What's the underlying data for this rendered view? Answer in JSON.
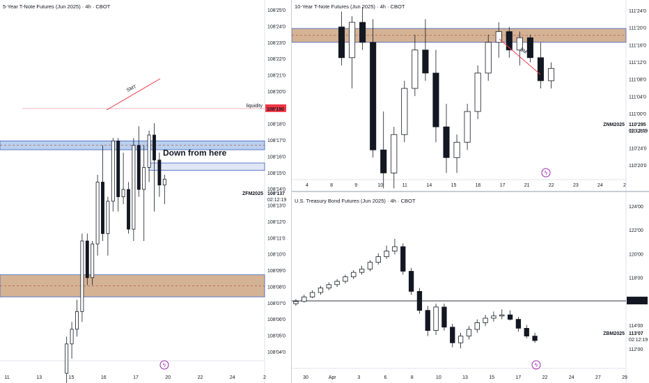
{
  "chart_data": [
    {
      "type": "candlestick",
      "title": "5-Year T-Note Futures (Jun 2025) · 4h · CBOT",
      "symbol": "ZFM2025",
      "last_price": "108'137",
      "countdown": "02:12:19",
      "liquidity_label": "liquidity",
      "liquidity_price": "108'190",
      "annotation": "Down from here",
      "smt_label": "SMT",
      "y_ticks": [
        "108'25'0",
        "108'24'0",
        "108'23'0",
        "108'22'0",
        "108'21'0",
        "108'20'0",
        "108'19'0",
        "108'18'0",
        "108'17'0",
        "108'16'0",
        "108'15'0",
        "108'14'0",
        "108'13'0",
        "108'12'0",
        "108'11'0",
        "108'10'0",
        "108'09'0",
        "108'08'0",
        "108'07'0",
        "108'06'0",
        "108'05'0",
        "108'04'0"
      ],
      "x_ticks": [
        "11",
        "13",
        "15",
        "16",
        "17",
        "20",
        "22",
        "24",
        "2"
      ],
      "ylim": [
        108.02,
        108.26
      ],
      "candles": [
        [
          108.01,
          108.035,
          107.99,
          108.03
        ],
        [
          108.03,
          108.045,
          108.02,
          108.04
        ],
        [
          108.04,
          108.06,
          108.035,
          108.052
        ],
        [
          108.052,
          108.105,
          108.045,
          108.1
        ],
        [
          108.1,
          108.105,
          108.07,
          108.075
        ],
        [
          108.075,
          108.1,
          108.07,
          108.098
        ],
        [
          108.098,
          108.145,
          108.09,
          108.14
        ],
        [
          108.14,
          108.165,
          108.1,
          108.105
        ],
        [
          108.105,
          108.13,
          108.09,
          108.127
        ],
        [
          108.127,
          108.17,
          108.12,
          108.168
        ],
        [
          108.168,
          108.17,
          108.12,
          108.13
        ],
        [
          108.13,
          108.16,
          108.125,
          108.135
        ],
        [
          108.135,
          108.14,
          108.105,
          108.108
        ],
        [
          108.108,
          108.17,
          108.1,
          108.165
        ],
        [
          108.165,
          108.178,
          108.13,
          108.135
        ],
        [
          108.135,
          108.165,
          108.1,
          108.15
        ],
        [
          108.15,
          108.175,
          108.14,
          108.172
        ],
        [
          108.172,
          108.18,
          108.12,
          108.155
        ],
        [
          108.155,
          108.16,
          108.13,
          108.138
        ],
        [
          108.138,
          108.145,
          108.125,
          108.142
        ]
      ],
      "zones": [
        {
          "name": "upper-zone",
          "from": 108.162,
          "to": 108.168,
          "color": "#a8c4e8"
        },
        {
          "name": "lower-zone",
          "from": 108.062,
          "to": 108.077,
          "color": "#c9a07a"
        }
      ],
      "annotation_zone": {
        "from": 108.148,
        "to": 108.153
      }
    },
    {
      "type": "candlestick",
      "title": "10-Year T-Note Futures (Jun 2025) · 4h · CBOT",
      "symbol": "ZNM2025",
      "last_price": "110'295",
      "countdown": "02:12:19",
      "smt_label": "SMT",
      "y_ticks": [
        "111'24'0",
        "111'20'0",
        "111'16'0",
        "111'12'0",
        "111'08'0",
        "111'04'0",
        "111'00'0",
        "110'28'0",
        "110'24'0",
        "110'20'0"
      ],
      "x_ticks": [
        "4",
        "8",
        "9",
        "10",
        "11",
        "14",
        "15",
        "16",
        "17",
        "21",
        "22",
        "23",
        "24",
        "2"
      ],
      "ylim": [
        110.17,
        111.28
      ],
      "candles": [
        [
          111.15,
          111.25,
          110.9,
          110.95
        ],
        [
          110.95,
          111.22,
          110.75,
          111.18
        ],
        [
          111.18,
          111.28,
          111.0,
          111.05
        ],
        [
          111.05,
          111.2,
          110.3,
          110.35
        ],
        [
          110.35,
          110.6,
          110.1,
          110.2
        ],
        [
          110.2,
          110.5,
          110.1,
          110.45
        ],
        [
          110.45,
          110.8,
          110.4,
          110.75
        ],
        [
          110.75,
          111.1,
          110.7,
          111.0
        ],
        [
          111.0,
          111.2,
          110.8,
          110.85
        ],
        [
          110.85,
          111.0,
          110.4,
          110.5
        ],
        [
          110.5,
          110.65,
          110.2,
          110.3
        ],
        [
          110.3,
          110.45,
          110.2,
          110.4
        ],
        [
          110.4,
          110.65,
          110.35,
          110.6
        ],
        [
          110.6,
          110.9,
          110.55,
          110.85
        ],
        [
          110.85,
          111.1,
          110.8,
          111.05
        ],
        [
          111.05,
          111.18,
          110.95,
          111.12
        ],
        [
          111.12,
          111.15,
          110.95,
          111.0
        ],
        [
          111.0,
          111.12,
          110.9,
          111.08
        ],
        [
          111.08,
          111.1,
          110.92,
          110.95
        ],
        [
          110.95,
          111.05,
          110.75,
          110.8
        ],
        [
          110.8,
          110.92,
          110.75,
          110.88
        ]
      ],
      "zones": [
        {
          "name": "zone",
          "from": 111.05,
          "to": 111.14,
          "color": "#c9a07a"
        }
      ]
    },
    {
      "type": "candlestick",
      "title": "U.S. Treasury Bond Futures (Jun 2025) · 4h · CBOT",
      "symbol": "ZBM2025",
      "last_price": "113'07",
      "countdown": "02:12:19",
      "level_price": "116'21",
      "y_ticks": [
        "124'00",
        "122'00",
        "120'00",
        "118'00",
        "116'00",
        "114'00",
        "112'00"
      ],
      "x_ticks": [
        "30",
        "Apr",
        "3",
        "6",
        "8",
        "10",
        "13",
        "15",
        "17",
        "22",
        "24",
        "27",
        "29"
      ],
      "ylim": [
        110.8,
        125.0
      ],
      "candles": [
        [
          116.4,
          116.8,
          116.2,
          116.6
        ],
        [
          116.6,
          117.2,
          116.5,
          117.0
        ],
        [
          117.0,
          117.6,
          116.9,
          117.4
        ],
        [
          117.4,
          118.0,
          117.2,
          117.8
        ],
        [
          117.8,
          118.3,
          117.6,
          118.1
        ],
        [
          118.1,
          118.6,
          117.9,
          118.4
        ],
        [
          118.4,
          119.0,
          118.2,
          118.8
        ],
        [
          118.8,
          119.4,
          118.6,
          119.2
        ],
        [
          119.2,
          119.8,
          119.0,
          119.5
        ],
        [
          119.5,
          120.3,
          119.3,
          120.1
        ],
        [
          120.1,
          120.9,
          119.9,
          120.6
        ],
        [
          120.6,
          121.6,
          120.4,
          121.1
        ],
        [
          121.1,
          122.2,
          120.8,
          121.5
        ],
        [
          121.5,
          121.8,
          119.0,
          119.3
        ],
        [
          119.3,
          119.6,
          117.2,
          117.5
        ],
        [
          117.5,
          117.8,
          115.5,
          115.8
        ],
        [
          115.8,
          116.2,
          113.5,
          114.0
        ],
        [
          114.0,
          116.4,
          113.6,
          116.1
        ],
        [
          116.1,
          116.4,
          114.0,
          114.3
        ],
        [
          114.3,
          114.6,
          112.5,
          112.9
        ],
        [
          112.9,
          113.8,
          112.4,
          113.5
        ],
        [
          113.5,
          114.4,
          113.2,
          114.1
        ],
        [
          114.1,
          115.0,
          113.8,
          114.7
        ],
        [
          114.7,
          115.4,
          114.4,
          115.1
        ],
        [
          115.1,
          115.7,
          114.8,
          115.3
        ],
        [
          115.3,
          115.9,
          115.0,
          115.4
        ],
        [
          115.4,
          115.8,
          114.9,
          115.0
        ],
        [
          115.0,
          115.2,
          113.9,
          114.2
        ],
        [
          114.2,
          114.5,
          113.3,
          113.5
        ],
        [
          113.5,
          113.8,
          112.9,
          113.1
        ]
      ],
      "hline": 116.65
    }
  ]
}
